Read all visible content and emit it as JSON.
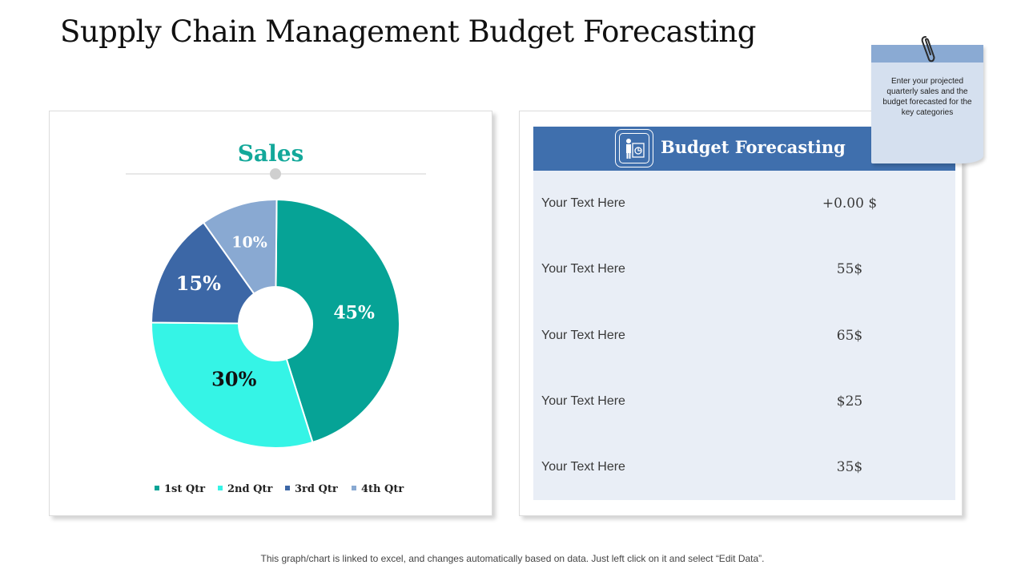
{
  "page": {
    "title": "Supply Chain Management Budget Forecasting",
    "footer": "This graph/chart is linked to excel, and changes automatically based on data. Just left click on it and select “Edit Data”."
  },
  "note": {
    "text": "Enter your projected quarterly sales and the budget forecasted for the key categories"
  },
  "chart_data": {
    "type": "pie",
    "title": "Sales",
    "categories": [
      "1st Qtr",
      "2nd Qtr",
      "3rd Qtr",
      "4th Qtr"
    ],
    "values": [
      45,
      30,
      15,
      10
    ],
    "labels": [
      "45%",
      "30%",
      "15%",
      "10%"
    ],
    "colors": [
      "#06a396",
      "#35f4e6",
      "#3c67a6",
      "#89a9d2"
    ],
    "label_colors": [
      "#ffffff",
      "#111111",
      "#ffffff",
      "#ffffff"
    ],
    "donut_hole": true,
    "legend_position": "bottom"
  },
  "budget": {
    "header": "Budget Forecasting",
    "header_color": "#3f6fad",
    "icon": "presenter-chart-icon",
    "rows": [
      {
        "label": "Your Text Here",
        "value": "+0.00 $"
      },
      {
        "label": "Your Text Here",
        "value": "55$"
      },
      {
        "label": "Your Text Here",
        "value": "65$"
      },
      {
        "label": "Your Text Here",
        "value": "$25"
      },
      {
        "label": "Your Text Here",
        "value": "35$"
      }
    ]
  }
}
